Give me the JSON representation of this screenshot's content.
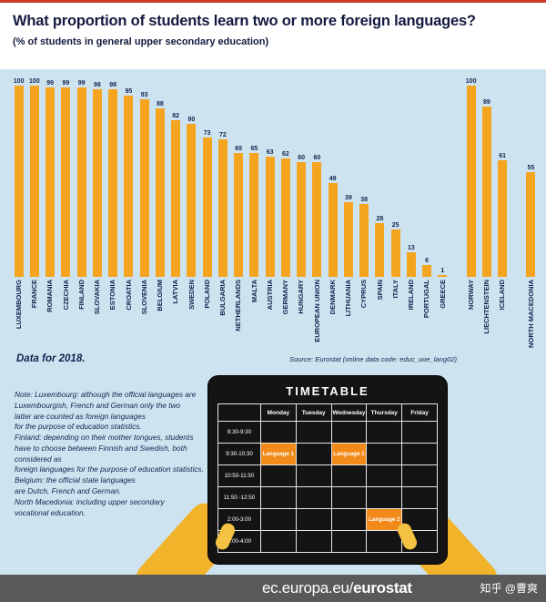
{
  "page": {
    "title": "What proportion of students learn two or more foreign languages?",
    "subtitle": "(% of students in general upper secondary education)"
  },
  "chart_data": {
    "type": "bar",
    "title": "What proportion of students learn two or more foreign languages?",
    "subtitle": "(% of students in general upper secondary education)",
    "unit": "%",
    "ylim": [
      0,
      100
    ],
    "bar_color": "#f5a41f",
    "categories": [
      "LUXEMBOURG",
      "FRANCE",
      "ROMANIA",
      "CZECHIA",
      "FINLAND",
      "SLOVAKIA",
      "ESTONIA",
      "CROATIA",
      "SLOVENIA",
      "BELGIUM",
      "LATVIA",
      "SWEDEN",
      "POLAND",
      "BULGARIA",
      "NETHERLANDS",
      "MALTA",
      "AUSTRIA",
      "GERMANY",
      "HUNGARY",
      "EUROPEAN UNION",
      "DENMARK",
      "LITHUANIA",
      "CYPRUS",
      "SPAIN",
      "ITALY",
      "IRELAND",
      "PORTUGAL",
      "GREECE",
      "NORWAY",
      "LIECHTENSTEIN",
      "ICELAND",
      "NORTH MACEDONIA"
    ],
    "values": [
      100,
      100,
      99,
      99,
      99,
      98,
      98,
      95,
      93,
      88,
      82,
      80,
      73,
      72,
      65,
      65,
      63,
      62,
      60,
      60,
      49,
      39,
      38,
      28,
      25,
      13,
      6,
      1,
      100,
      89,
      61,
      55
    ],
    "gap_after_indices": [
      27,
      30
    ]
  },
  "annotations": {
    "data_for": "Data for 2018.",
    "source": "Source: Eurostat (online data code: educ_uoe_lang02)",
    "note": "Note: Luxembourg: although the official languages are\nLuxembourgish, French and German only the two\nlatter are counted as  foreign languages\nfor the purpose of education statistics.\nFinland: depending on their mother tongues, students\nhave to choose between Finnish and Swedish, both considered as\nforeign languages for the purpose of education statistics.\nBelgium: the official state languages\nare Dutch, French and German.\nNorth Macedonia: including upper secondary\nvocational education."
  },
  "timetable": {
    "title": "TIMETABLE",
    "day_headers": [
      "Monday",
      "Tuesday",
      "Wednesday",
      "Thursday",
      "Friday"
    ],
    "time_slots": [
      "8:30-9:30",
      "9:30-10:30",
      "10:50-11:50",
      "11:50 -12:50",
      "2:00-3:00",
      "3:00-4:00"
    ],
    "entries": [
      {
        "time": "9:30-10:30",
        "day": "Monday",
        "label": "Language 1"
      },
      {
        "time": "9:30-10:30",
        "day": "Wednesday",
        "label": "Language 1"
      },
      {
        "time": "2:00-3:00",
        "day": "Thursday",
        "label": "Language 2"
      }
    ],
    "highlight_color": "#f18a18"
  },
  "footer": {
    "url_prefix": "ec.europa.eu/",
    "brand": "eurostat",
    "watermark": "知乎 @曹爽"
  },
  "colors": {
    "background": "#cde4f0",
    "bar": "#f5a41f",
    "text": "#15224e",
    "footer_bg": "#58595b",
    "top_accent": "#cf3a2a"
  }
}
